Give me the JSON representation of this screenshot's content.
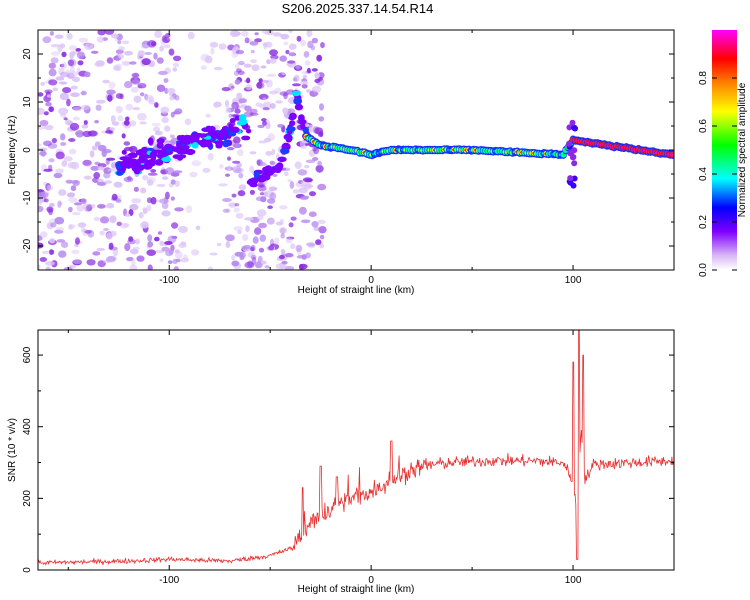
{
  "title": "S206.2025.337.14.54.R14",
  "chart_data": [
    {
      "type": "heatmap",
      "xlabel": "Height of straight line (km)",
      "ylabel": "Frequency (Hz)",
      "xlim": [
        -165,
        150
      ],
      "ylim": [
        -25,
        25
      ],
      "xticks": [
        -100,
        0,
        100
      ],
      "yticks": [
        -20,
        -10,
        0,
        10,
        20
      ],
      "colorbar": {
        "label": "Normalized spectral amplitude",
        "range": [
          0.0,
          1.0
        ],
        "ticks": [
          0.0,
          0.2,
          0.4,
          0.6,
          0.8
        ],
        "tick_labels": [
          "0.0",
          "0.2",
          "0.4",
          "0.6",
          "0.8"
        ],
        "colormap": [
          "#ffffff",
          "#d9b8f5",
          "#8000ff",
          "#0000ff",
          "#00ffff",
          "#00ff00",
          "#ffff00",
          "#ff8000",
          "#ff0000",
          "#ff00ff"
        ]
      },
      "features": {
        "noise_region_x": [
          -165,
          -30
        ],
        "carrier_trend": [
          [
            -60,
            -7
          ],
          [
            -45,
            -3
          ],
          [
            -40,
            4
          ],
          [
            -37,
            12
          ],
          [
            -33,
            3
          ],
          [
            -25,
            1
          ],
          [
            -10,
            0
          ],
          [
            0,
            -1
          ],
          [
            10,
            0
          ],
          [
            50,
            0
          ],
          [
            95,
            -1
          ],
          [
            100,
            2
          ],
          [
            150,
            -1
          ]
        ],
        "strong_segment_x": [
          100,
          150
        ]
      }
    },
    {
      "type": "line",
      "xlabel": "Height of straight line (km)",
      "ylabel": "SNR (10 * v/v)",
      "xlim": [
        -165,
        150
      ],
      "ylim": [
        0,
        670
      ],
      "xticks": [
        -100,
        0,
        100
      ],
      "yticks": [
        0,
        200,
        400,
        600
      ],
      "color": "#e83030",
      "trend": {
        "x": [
          -165,
          -120,
          -100,
          -70,
          -50,
          -40,
          -30,
          -20,
          -10,
          0,
          10,
          20,
          30,
          40,
          60,
          80,
          95,
          100,
          102,
          104,
          106,
          110,
          130,
          150
        ],
        "y": [
          20,
          25,
          30,
          25,
          40,
          60,
          130,
          170,
          200,
          220,
          250,
          280,
          295,
          300,
          305,
          305,
          300,
          250,
          150,
          400,
          250,
          295,
          300,
          305
        ]
      },
      "spikes": [
        {
          "x": -34,
          "y": 230
        },
        {
          "x": -25,
          "y": 290
        },
        {
          "x": -17,
          "y": 260
        },
        {
          "x": 10,
          "y": 360
        },
        {
          "x": 100,
          "y": 580
        },
        {
          "x": 102,
          "y": 30
        },
        {
          "x": 103,
          "y": 670
        },
        {
          "x": 105,
          "y": 600
        }
      ]
    }
  ]
}
